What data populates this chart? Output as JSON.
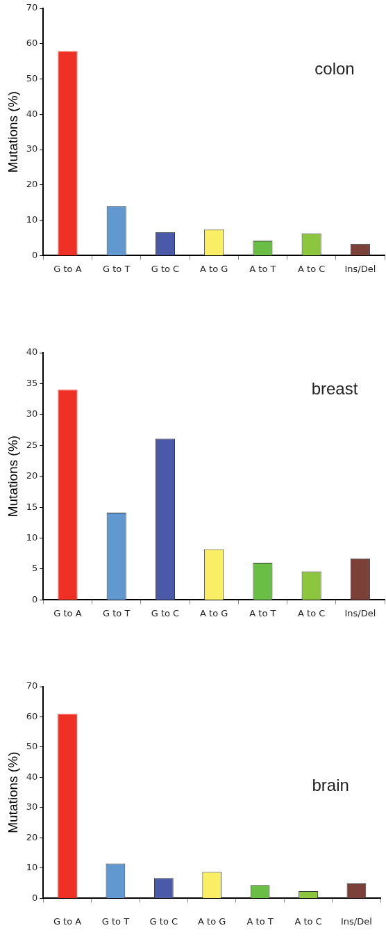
{
  "chart_data": [
    {
      "type": "bar",
      "title": "colon",
      "ylabel": "Mutations (%)",
      "categories": [
        "G to A",
        "G to T",
        "G to C",
        "A to G",
        "A to T",
        "A to C",
        "Ins/Del"
      ],
      "values": [
        57.8,
        14.0,
        6.6,
        7.4,
        4.2,
        6.3,
        3.3
      ],
      "colors": [
        "#ee3124",
        "#6198d0",
        "#4b5aa8",
        "#f9ee64",
        "#6abd45",
        "#8cc63f",
        "#7b4037"
      ],
      "ylim": [
        0,
        70
      ],
      "yticks": [
        0,
        10,
        20,
        30,
        40,
        50,
        60,
        70
      ]
    },
    {
      "type": "bar",
      "title": "breast",
      "ylabel": "Mutations (%)",
      "categories": [
        "G to A",
        "G to T",
        "G to C",
        "A to G",
        "A to T",
        "A to C",
        "Ins/Del"
      ],
      "values": [
        34.0,
        14.1,
        26.1,
        8.2,
        6.0,
        4.6,
        6.7
      ],
      "colors": [
        "#ee3124",
        "#6198d0",
        "#4b5aa8",
        "#f9ee64",
        "#6abd45",
        "#8cc63f",
        "#7b4037"
      ],
      "ylim": [
        0,
        40
      ],
      "yticks": [
        0,
        5,
        10,
        15,
        20,
        25,
        30,
        35,
        40
      ]
    },
    {
      "type": "bar",
      "title": "brain",
      "ylabel": "Mutations (%)",
      "categories": [
        "G to A",
        "G to T",
        "G to C",
        "A to G",
        "A to T",
        "A to C",
        "Ins/Del"
      ],
      "values": [
        61.0,
        11.5,
        6.7,
        8.7,
        4.4,
        2.4,
        4.9
      ],
      "colors": [
        "#ee3124",
        "#6198d0",
        "#4b5aa8",
        "#f9ee64",
        "#6abd45",
        "#8cc63f",
        "#7b4037"
      ],
      "ylim": [
        0,
        70
      ],
      "yticks": [
        0,
        10,
        20,
        30,
        40,
        50,
        60,
        70
      ]
    }
  ]
}
